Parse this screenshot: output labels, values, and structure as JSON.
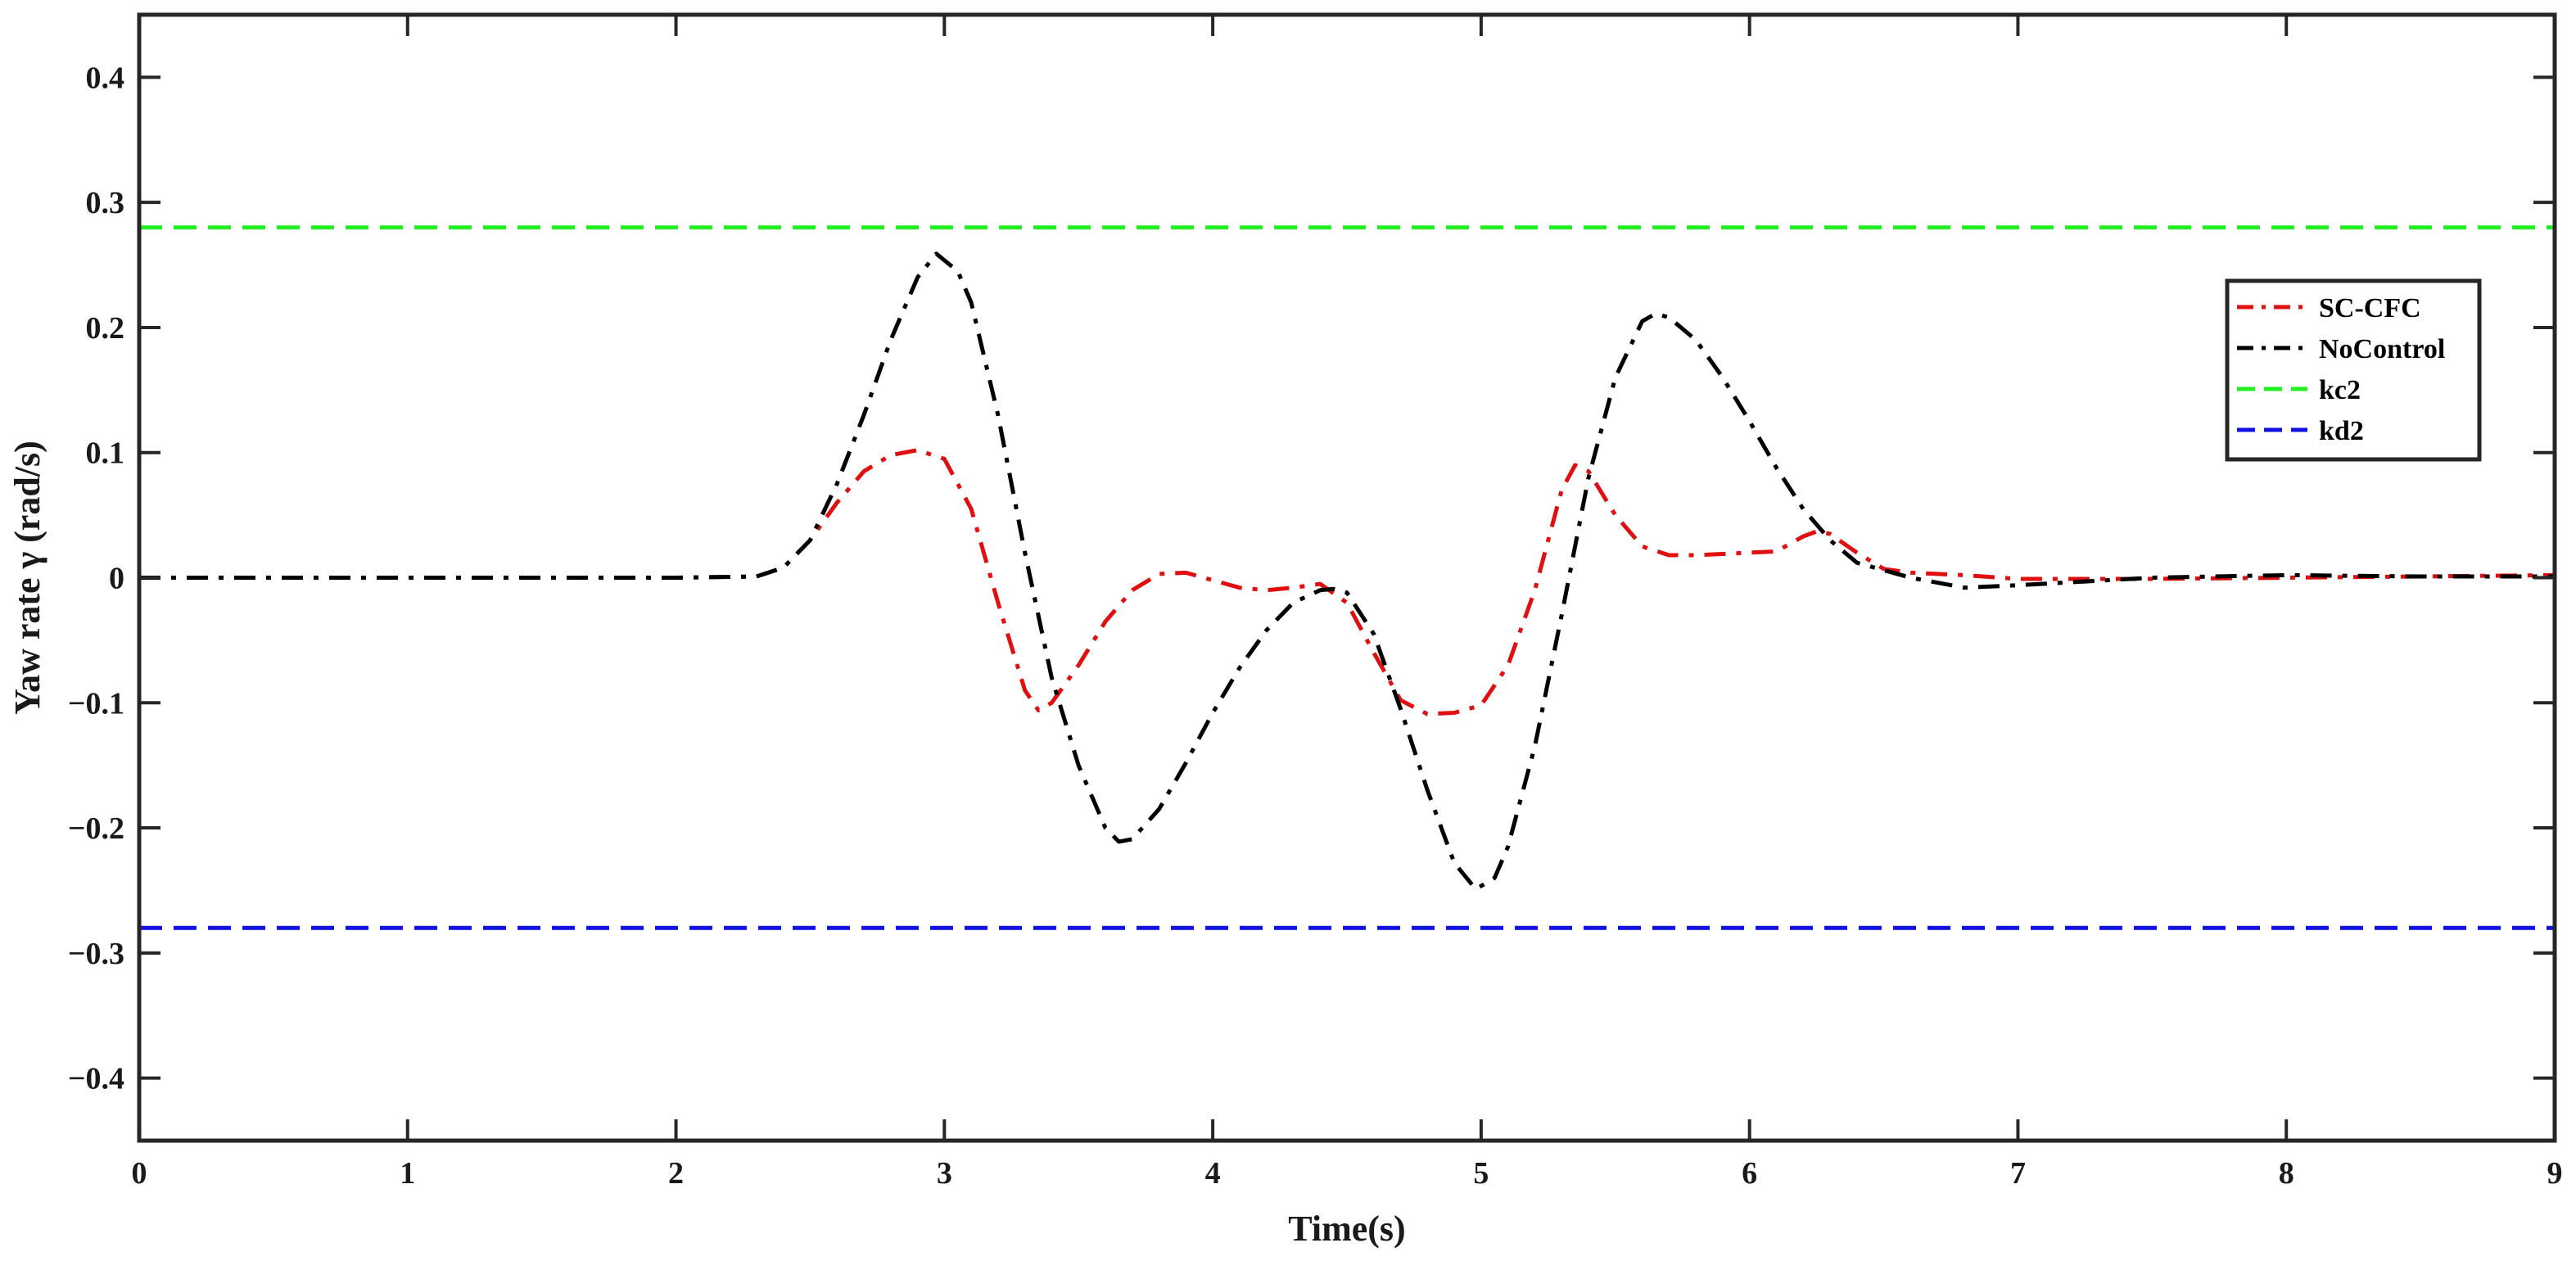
{
  "chart_data": {
    "type": "line",
    "title": "",
    "xlabel": "Time(s)",
    "ylabel": "Yaw rate γ (rad/s)",
    "xlim": [
      0,
      9
    ],
    "ylim": [
      -0.45,
      0.45
    ],
    "xticks": [
      0,
      1,
      2,
      3,
      4,
      5,
      6,
      7,
      8,
      9
    ],
    "xtick_labels": [
      "0",
      "1",
      "2",
      "3",
      "4",
      "5",
      "6",
      "7",
      "8",
      "9"
    ],
    "yticks": [
      -0.4,
      -0.3,
      -0.2,
      -0.1,
      0,
      0.1,
      0.2,
      0.3,
      0.4
    ],
    "ytick_labels": [
      "−0.4",
      "−0.3",
      "−0.2",
      "−0.1",
      "0",
      "0.1",
      "0.2",
      "0.3",
      "0.4"
    ],
    "grid": false,
    "legend_position": "top-right",
    "series": [
      {
        "name": "SC-CFC",
        "color": "#e01010",
        "dash": "dashdot",
        "x": [
          0,
          1,
          2,
          2.3,
          2.4,
          2.5,
          2.6,
          2.7,
          2.8,
          2.9,
          3.0,
          3.1,
          3.2,
          3.3,
          3.35,
          3.4,
          3.5,
          3.6,
          3.7,
          3.8,
          3.9,
          4.0,
          4.1,
          4.2,
          4.3,
          4.4,
          4.5,
          4.6,
          4.7,
          4.8,
          4.9,
          5.0,
          5.1,
          5.2,
          5.3,
          5.35,
          5.4,
          5.5,
          5.6,
          5.7,
          5.8,
          5.9,
          6.0,
          6.1,
          6.2,
          6.25,
          6.3,
          6.4,
          6.5,
          6.6,
          6.8,
          7.0,
          7.5,
          8.0,
          8.5,
          9.0
        ],
        "y": [
          0,
          0,
          0,
          0.001,
          0.008,
          0.03,
          0.06,
          0.085,
          0.098,
          0.102,
          0.095,
          0.055,
          -0.02,
          -0.09,
          -0.106,
          -0.1,
          -0.07,
          -0.035,
          -0.01,
          0.003,
          0.004,
          -0.002,
          -0.008,
          -0.01,
          -0.008,
          -0.005,
          -0.02,
          -0.06,
          -0.098,
          -0.109,
          -0.108,
          -0.102,
          -0.07,
          -0.01,
          0.07,
          0.09,
          0.085,
          0.05,
          0.025,
          0.018,
          0.018,
          0.019,
          0.02,
          0.021,
          0.033,
          0.037,
          0.035,
          0.02,
          0.007,
          0.004,
          0.002,
          -0.001,
          -0.001,
          0.0,
          0.001,
          0.002
        ]
      },
      {
        "name": "NoControl",
        "color": "#000000",
        "dash": "dashdot",
        "x": [
          0,
          1,
          2,
          2.3,
          2.4,
          2.5,
          2.6,
          2.7,
          2.8,
          2.9,
          2.97,
          3.05,
          3.1,
          3.2,
          3.3,
          3.4,
          3.5,
          3.6,
          3.65,
          3.7,
          3.8,
          3.9,
          4.0,
          4.1,
          4.2,
          4.3,
          4.4,
          4.45,
          4.5,
          4.6,
          4.7,
          4.8,
          4.9,
          4.98,
          5.05,
          5.1,
          5.2,
          5.3,
          5.4,
          5.5,
          5.6,
          5.65,
          5.7,
          5.8,
          5.9,
          6.0,
          6.1,
          6.2,
          6.3,
          6.4,
          6.6,
          6.8,
          7.0,
          7.5,
          8.0,
          8.5,
          9.0
        ],
        "y": [
          0,
          0,
          0,
          0.001,
          0.008,
          0.03,
          0.075,
          0.13,
          0.19,
          0.24,
          0.259,
          0.245,
          0.22,
          0.13,
          0.02,
          -0.08,
          -0.15,
          -0.2,
          -0.211,
          -0.209,
          -0.185,
          -0.148,
          -0.108,
          -0.072,
          -0.042,
          -0.02,
          -0.01,
          -0.009,
          -0.012,
          -0.045,
          -0.105,
          -0.17,
          -0.228,
          -0.249,
          -0.24,
          -0.215,
          -0.135,
          -0.03,
          0.08,
          0.16,
          0.205,
          0.211,
          0.208,
          0.19,
          0.16,
          0.125,
          0.088,
          0.055,
          0.03,
          0.012,
          0.0,
          -0.008,
          -0.006,
          0.0,
          0.002,
          0.001,
          0.001
        ]
      },
      {
        "name": "kc2",
        "color": "#22ee22",
        "dash": "dashed",
        "x": [
          0,
          9
        ],
        "y": [
          0.28,
          0.28
        ]
      },
      {
        "name": "kd2",
        "color": "#1010e0",
        "dash": "dashed",
        "x": [
          0,
          9
        ],
        "y": [
          -0.28,
          -0.28
        ]
      }
    ]
  }
}
